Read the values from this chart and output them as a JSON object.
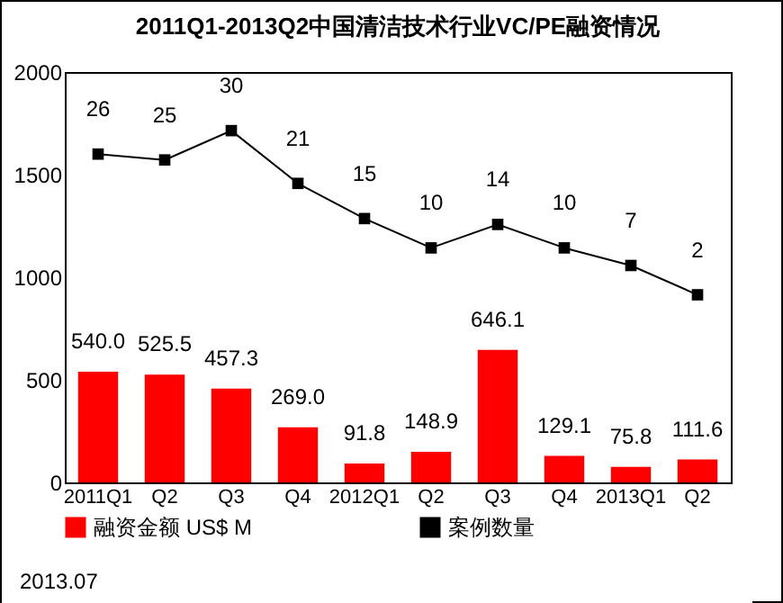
{
  "chart_data": {
    "type": "bar",
    "title": "2011Q1-2013Q2中国清洁技术行业VC/PE融资情况",
    "categories": [
      "2011Q1",
      "Q2",
      "Q3",
      "Q4",
      "2012Q1",
      "Q2",
      "Q3",
      "Q4",
      "2013Q1",
      "Q2"
    ],
    "series": [
      {
        "name": "融资金额 US$ M",
        "color": "#ff0000",
        "values": [
          540,
          525.5,
          457.3,
          269,
          91.8,
          148.9,
          646.1,
          129.1,
          75.8,
          111.6
        ],
        "value_labels": [
          "540.0",
          "525.5",
          "457.3",
          "269.0",
          "91.8",
          "148.9",
          "646.1",
          "129.1",
          "75.8",
          "111.6"
        ]
      },
      {
        "name": "案例数量",
        "type": "line",
        "axis": "y2",
        "color": "#000000",
        "values": [
          26,
          25,
          30,
          21,
          15,
          10,
          14,
          10,
          7,
          2
        ],
        "value_labels": [
          "26",
          "25",
          "30",
          "21",
          "15",
          "10",
          "14",
          "10",
          "7",
          "2"
        ]
      }
    ],
    "ylim": [
      0,
      2000
    ],
    "yticks": [
      0,
      500,
      1000,
      1500,
      2000
    ],
    "y2lim": [
      -30,
      40
    ],
    "tick_labels": "xy",
    "grid": false,
    "legend": "bottom",
    "marker": "square",
    "line_style": "solid",
    "annotations": [
      "2013.07"
    ]
  }
}
